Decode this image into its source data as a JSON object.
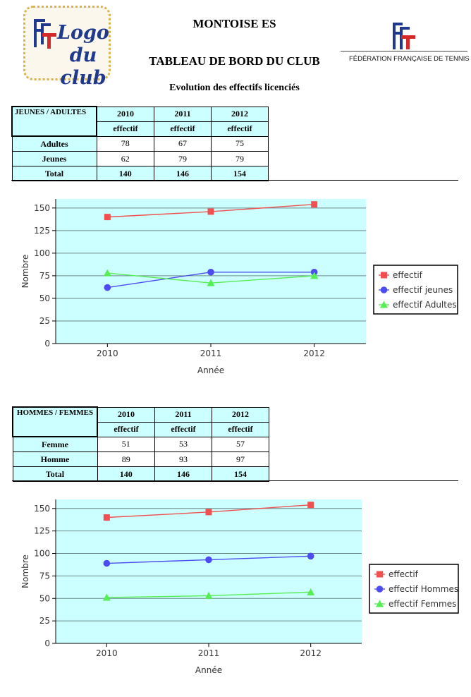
{
  "header": {
    "club_logo_text": "Logo du club",
    "club_logo_fft": "FFT",
    "club_name": "MONTOISE ES",
    "dashboard_title": "TABLEAU DE BORD DU CLUB",
    "fft_name": "FÉDÉRATION FRANÇAISE DE TENNIS",
    "subtitle": "Evolution des effectifs licenciés"
  },
  "table1": {
    "corner": "JEUNES / ADULTES",
    "years": [
      "2010",
      "2011",
      "2012"
    ],
    "sublabel": "effectif",
    "rows": [
      {
        "label": "Adultes",
        "values": [
          "78",
          "67",
          "75"
        ]
      },
      {
        "label": "Jeunes",
        "values": [
          "62",
          "79",
          "79"
        ]
      },
      {
        "label": "Total",
        "values": [
          "140",
          "146",
          "154"
        ]
      }
    ]
  },
  "table2": {
    "corner": "HOMMES / FEMMES",
    "years": [
      "2010",
      "2011",
      "2012"
    ],
    "sublabel": "effectif",
    "rows": [
      {
        "label": "Femme",
        "values": [
          "51",
          "53",
          "57"
        ]
      },
      {
        "label": "Homme",
        "values": [
          "89",
          "93",
          "97"
        ]
      },
      {
        "label": "Total",
        "values": [
          "140",
          "146",
          "154"
        ]
      }
    ]
  },
  "chart_data": [
    {
      "type": "line",
      "x": [
        "2010",
        "2011",
        "2012"
      ],
      "xlabel": "Année",
      "ylabel": "Nombre",
      "ylim": [
        0,
        160
      ],
      "yticks": [
        0,
        25,
        50,
        75,
        100,
        125,
        150
      ],
      "grid": true,
      "legend": "right",
      "series": [
        {
          "name": "effectif",
          "values": [
            140,
            146,
            154
          ],
          "color": "#f05050",
          "marker": "square"
        },
        {
          "name": "effectif jeunes",
          "values": [
            62,
            79,
            79
          ],
          "color": "#4c4cf0",
          "marker": "circle"
        },
        {
          "name": "effectif Adultes",
          "values": [
            78,
            67,
            75
          ],
          "color": "#55ee55",
          "marker": "triangle"
        }
      ]
    },
    {
      "type": "line",
      "x": [
        "2010",
        "2011",
        "2012"
      ],
      "xlabel": "Année",
      "ylabel": "Nombre",
      "ylim": [
        0,
        160
      ],
      "yticks": [
        0,
        25,
        50,
        75,
        100,
        125,
        150
      ],
      "grid": true,
      "legend": "right",
      "series": [
        {
          "name": "effectif",
          "values": [
            140,
            146,
            154
          ],
          "color": "#f05050",
          "marker": "square"
        },
        {
          "name": "effectif Hommes",
          "values": [
            89,
            93,
            97
          ],
          "color": "#4c4cf0",
          "marker": "circle"
        },
        {
          "name": "effectif Femmes",
          "values": [
            51,
            53,
            57
          ],
          "color": "#55ee55",
          "marker": "triangle"
        }
      ]
    }
  ],
  "colors": {
    "plot_bg": "#ccffff",
    "table_bg": "#ccffff"
  }
}
